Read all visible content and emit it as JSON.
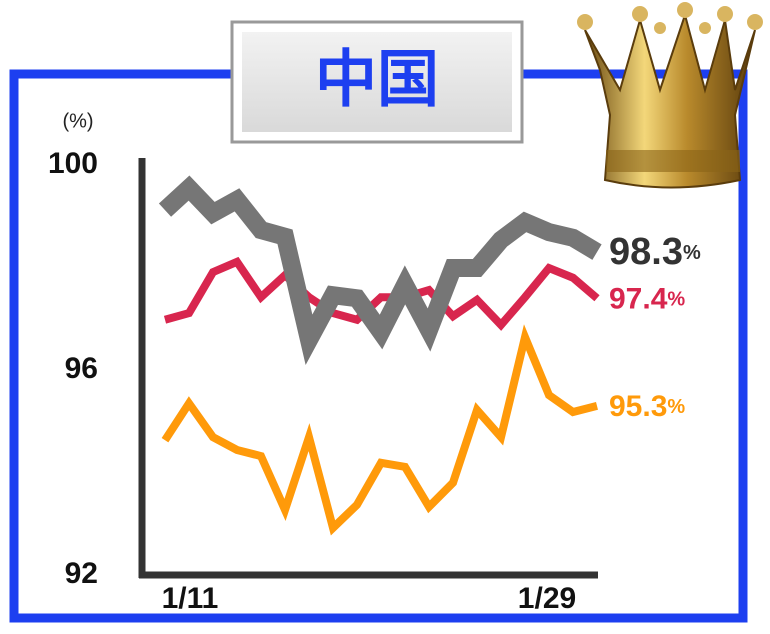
{
  "chart_data": {
    "type": "line",
    "title": "中国",
    "y_unit": "(%)",
    "categories": [
      "1/11",
      null,
      null,
      null,
      null,
      null,
      null,
      null,
      null,
      null,
      null,
      null,
      null,
      null,
      null,
      null,
      null,
      null,
      "1/29"
    ],
    "ylim": [
      92,
      100
    ],
    "yticks": [
      92,
      96,
      100
    ],
    "series": [
      {
        "name": "gray",
        "color": "#767676",
        "width": 18,
        "values": [
          99.12,
          99.55,
          99.06,
          99.32,
          98.73,
          98.6,
          96.59,
          97.46,
          97.4,
          96.74,
          97.66,
          96.78,
          97.99,
          97.99,
          98.54,
          98.89,
          98.69,
          98.58,
          98.3
        ],
        "end_label": "98.3",
        "end_label_unit": "%"
      },
      {
        "name": "red",
        "color": "#d8264e",
        "width": 8,
        "values": [
          96.98,
          97.11,
          97.91,
          98.11,
          97.42,
          97.85,
          97.42,
          97.11,
          96.98,
          97.42,
          97.42,
          97.56,
          97.05,
          97.37,
          96.88,
          97.42,
          97.99,
          97.8,
          97.4
        ],
        "end_label": "97.4",
        "end_label_unit": "%"
      },
      {
        "name": "orange",
        "color": "#ff9a0a",
        "width": 8,
        "values": [
          94.63,
          95.35,
          94.69,
          94.44,
          94.32,
          93.27,
          94.69,
          92.92,
          93.37,
          94.19,
          94.11,
          93.33,
          93.8,
          95.22,
          94.69,
          96.64,
          95.51,
          95.18,
          95.3
        ],
        "end_label": "95.3",
        "end_label_unit": "%"
      }
    ]
  }
}
